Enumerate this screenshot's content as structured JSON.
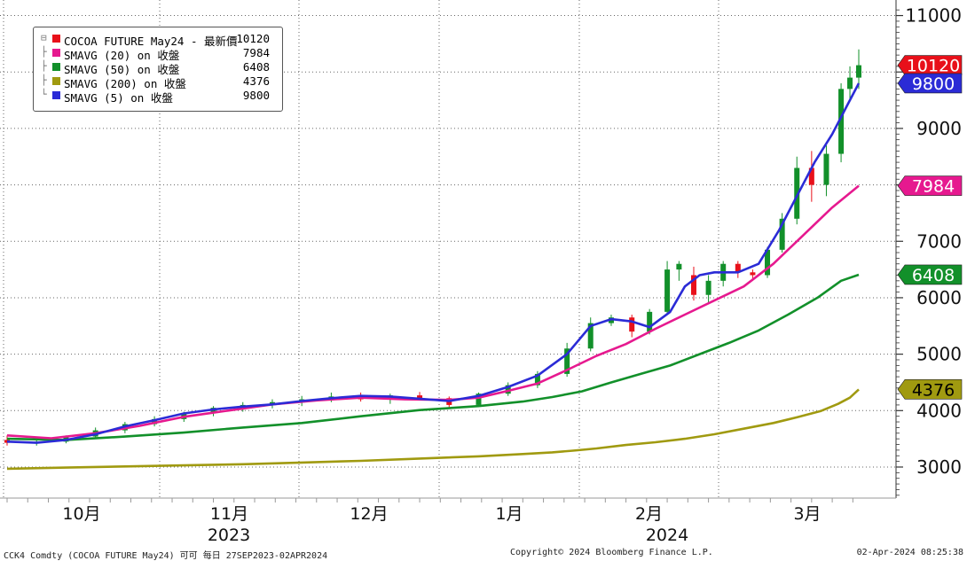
{
  "chart_data": {
    "type": "candlestick",
    "title": "",
    "y_axis": {
      "ticks": [
        3000,
        4000,
        5000,
        6000,
        7000,
        8000,
        9000,
        10000,
        11000
      ],
      "range": [
        2450,
        11150
      ],
      "position": "right"
    },
    "x_axis": {
      "month_labels": [
        "10月",
        "11月",
        "12月",
        "1月",
        "2月",
        "3月"
      ],
      "year_labels": [
        "2023",
        "2024"
      ]
    },
    "price_tags": [
      {
        "value": 10120,
        "label": "10120",
        "color": "#e8101a",
        "text_color": "#ffffff"
      },
      {
        "value": 9800,
        "label": "9800",
        "color": "#2b2bd6",
        "text_color": "#ffffff"
      },
      {
        "value": 7984,
        "label": "7984",
        "color": "#e6198f",
        "text_color": "#ffffff"
      },
      {
        "value": 6408,
        "label": "6408",
        "color": "#12902a",
        "text_color": "#ffffff"
      },
      {
        "value": 4376,
        "label": "4376",
        "color": "#a09a10",
        "text_color": "#000000"
      }
    ],
    "legend": [
      {
        "name": "COCOA FUTURE May24 - 最新價",
        "value": "10120",
        "color": "#e8101a"
      },
      {
        "name": "SMAVG (20)  on 收盤",
        "value": "7984",
        "color": "#e6198f"
      },
      {
        "name": "SMAVG (50)  on 收盤",
        "value": "6408",
        "color": "#12902a"
      },
      {
        "name": "SMAVG (200)  on 收盤",
        "value": "4376",
        "color": "#a09a10"
      },
      {
        "name": "SMAVG (5)  on 收盤",
        "value": "9800",
        "color": "#2b2bd6"
      }
    ],
    "series": [
      {
        "name": "SMAVG (200)",
        "color": "#a09a10",
        "points": [
          [
            0,
            2970
          ],
          [
            20,
            2990
          ],
          [
            40,
            3010
          ],
          [
            60,
            3030
          ],
          [
            80,
            3050
          ],
          [
            100,
            3080
          ],
          [
            120,
            3110
          ],
          [
            140,
            3150
          ],
          [
            160,
            3190
          ],
          [
            175,
            3230
          ],
          [
            185,
            3260
          ],
          [
            192,
            3290
          ],
          [
            200,
            3330
          ],
          [
            210,
            3390
          ],
          [
            220,
            3440
          ],
          [
            230,
            3500
          ],
          [
            240,
            3580
          ],
          [
            250,
            3680
          ],
          [
            260,
            3780
          ],
          [
            268,
            3880
          ],
          [
            276,
            3990
          ],
          [
            282,
            4120
          ],
          [
            286,
            4230
          ],
          [
            289,
            4376
          ]
        ]
      },
      {
        "name": "SMAVG (50)",
        "color": "#12902a",
        "points": [
          [
            0,
            3500
          ],
          [
            20,
            3480
          ],
          [
            40,
            3540
          ],
          [
            60,
            3610
          ],
          [
            80,
            3700
          ],
          [
            100,
            3780
          ],
          [
            120,
            3900
          ],
          [
            140,
            4010
          ],
          [
            160,
            4080
          ],
          [
            175,
            4160
          ],
          [
            185,
            4240
          ],
          [
            195,
            4340
          ],
          [
            205,
            4500
          ],
          [
            215,
            4650
          ],
          [
            225,
            4800
          ],
          [
            235,
            5000
          ],
          [
            245,
            5200
          ],
          [
            255,
            5420
          ],
          [
            265,
            5700
          ],
          [
            275,
            6000
          ],
          [
            283,
            6300
          ],
          [
            289,
            6408
          ]
        ]
      },
      {
        "name": "SMAVG (20)",
        "color": "#e6198f",
        "points": [
          [
            0,
            3560
          ],
          [
            15,
            3510
          ],
          [
            30,
            3600
          ],
          [
            45,
            3730
          ],
          [
            60,
            3890
          ],
          [
            75,
            4000
          ],
          [
            90,
            4110
          ],
          [
            105,
            4180
          ],
          [
            120,
            4230
          ],
          [
            135,
            4200
          ],
          [
            150,
            4190
          ],
          [
            160,
            4230
          ],
          [
            170,
            4350
          ],
          [
            180,
            4480
          ],
          [
            190,
            4720
          ],
          [
            200,
            4970
          ],
          [
            210,
            5180
          ],
          [
            220,
            5450
          ],
          [
            230,
            5700
          ],
          [
            240,
            5950
          ],
          [
            250,
            6200
          ],
          [
            260,
            6600
          ],
          [
            270,
            7100
          ],
          [
            280,
            7600
          ],
          [
            289,
            7984
          ]
        ]
      },
      {
        "name": "SMAVG (5)",
        "color": "#2b2bd6",
        "points": [
          [
            0,
            3450
          ],
          [
            10,
            3430
          ],
          [
            20,
            3480
          ],
          [
            30,
            3580
          ],
          [
            40,
            3720
          ],
          [
            50,
            3830
          ],
          [
            60,
            3950
          ],
          [
            70,
            4020
          ],
          [
            80,
            4070
          ],
          [
            90,
            4110
          ],
          [
            100,
            4170
          ],
          [
            110,
            4220
          ],
          [
            120,
            4260
          ],
          [
            130,
            4250
          ],
          [
            140,
            4210
          ],
          [
            150,
            4170
          ],
          [
            160,
            4260
          ],
          [
            170,
            4420
          ],
          [
            180,
            4620
          ],
          [
            190,
            5000
          ],
          [
            198,
            5500
          ],
          [
            205,
            5620
          ],
          [
            212,
            5580
          ],
          [
            218,
            5480
          ],
          [
            225,
            5750
          ],
          [
            230,
            6200
          ],
          [
            235,
            6400
          ],
          [
            240,
            6450
          ],
          [
            248,
            6450
          ],
          [
            255,
            6600
          ],
          [
            262,
            7200
          ],
          [
            268,
            7800
          ],
          [
            274,
            8400
          ],
          [
            280,
            8900
          ],
          [
            285,
            9400
          ],
          [
            289,
            9800
          ]
        ]
      }
    ],
    "candles": {
      "color_up": "#12902a",
      "color_down": "#e8101a",
      "ohlc": [
        [
          0,
          3480,
          3560,
          3380,
          3430
        ],
        [
          10,
          3430,
          3500,
          3380,
          3450
        ],
        [
          20,
          3450,
          3560,
          3420,
          3540
        ],
        [
          30,
          3540,
          3700,
          3500,
          3650
        ],
        [
          40,
          3650,
          3800,
          3600,
          3760
        ],
        [
          50,
          3760,
          3900,
          3720,
          3850
        ],
        [
          60,
          3850,
          3980,
          3800,
          3950
        ],
        [
          70,
          3950,
          4080,
          3900,
          4050
        ],
        [
          80,
          4050,
          4150,
          3980,
          4100
        ],
        [
          90,
          4100,
          4200,
          4040,
          4150
        ],
        [
          100,
          4150,
          4260,
          4080,
          4200
        ],
        [
          110,
          4200,
          4320,
          4150,
          4250
        ],
        [
          120,
          4250,
          4320,
          4160,
          4200
        ],
        [
          130,
          4200,
          4300,
          4120,
          4270
        ],
        [
          140,
          4270,
          4330,
          4180,
          4220
        ],
        [
          150,
          4220,
          4250,
          4050,
          4100
        ],
        [
          160,
          4100,
          4320,
          4080,
          4300
        ],
        [
          170,
          4300,
          4500,
          4260,
          4450
        ],
        [
          180,
          4450,
          4700,
          4400,
          4650
        ],
        [
          190,
          4650,
          5200,
          4600,
          5100
        ],
        [
          198,
          5100,
          5650,
          5050,
          5550
        ],
        [
          205,
          5550,
          5700,
          5500,
          5650
        ],
        [
          212,
          5650,
          5700,
          5300,
          5400
        ],
        [
          218,
          5400,
          5800,
          5350,
          5750
        ],
        [
          224,
          5750,
          6650,
          5700,
          6500
        ],
        [
          228,
          6500,
          6650,
          6300,
          6600
        ],
        [
          233,
          6400,
          6550,
          5950,
          6050
        ],
        [
          238,
          6050,
          6400,
          5900,
          6300
        ],
        [
          243,
          6300,
          6650,
          6200,
          6600
        ],
        [
          248,
          6600,
          6650,
          6350,
          6450
        ],
        [
          253,
          6450,
          6500,
          6300,
          6400
        ],
        [
          258,
          6400,
          6900,
          6350,
          6850
        ],
        [
          263,
          6850,
          7500,
          6800,
          7400
        ],
        [
          268,
          7400,
          8500,
          7300,
          8300
        ],
        [
          273,
          8300,
          8600,
          7700,
          8000
        ],
        [
          278,
          8000,
          8700,
          7800,
          8550
        ],
        [
          283,
          8550,
          9800,
          8400,
          9700
        ],
        [
          286,
          9700,
          10100,
          9500,
          9900
        ],
        [
          289,
          9900,
          10400,
          9700,
          10120
        ]
      ]
    }
  },
  "footer": {
    "left": "CCK4 Comdty (COCOA FUTURE      May24) 可可  每日 27SEP2023-02APR2024",
    "center": "Copyright© 2024 Bloomberg Finance L.P.",
    "right": "02-Apr-2024 08:25:38"
  }
}
